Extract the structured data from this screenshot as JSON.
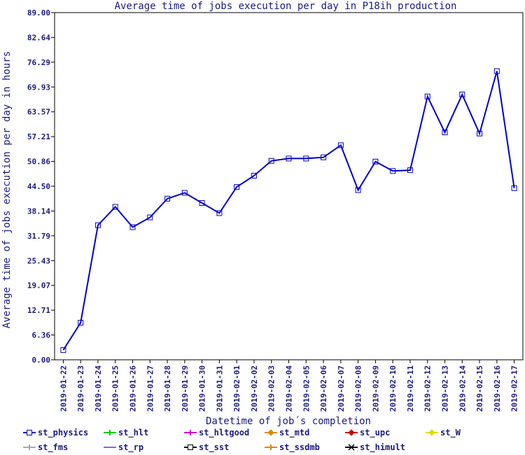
{
  "chart_data": {
    "type": "line",
    "title": "Average time of jobs execution per day in P18ih production",
    "xlabel": "Datetime of job´s completion",
    "ylabel": "Average time of jobs execution per day in hours",
    "ylim": [
      0,
      89
    ],
    "yticks": [
      "0.00",
      "6.36",
      "12.71",
      "19.07",
      "25.43",
      "31.79",
      "38.14",
      "44.50",
      "50.86",
      "57.21",
      "63.57",
      "69.93",
      "76.29",
      "82.64",
      "89.00"
    ],
    "categories": [
      "2019-01-22",
      "2019-01-23",
      "2019-01-24",
      "2019-01-25",
      "2019-01-26",
      "2019-01-27",
      "2019-01-28",
      "2019-01-29",
      "2019-01-30",
      "2019-01-31",
      "2019-02-01",
      "2019-02-02",
      "2019-02-03",
      "2019-02-04",
      "2019-02-05",
      "2019-02-06",
      "2019-02-07",
      "2019-02-08",
      "2019-02-09",
      "2019-02-10",
      "2019-02-11",
      "2019-02-12",
      "2019-02-13",
      "2019-02-14",
      "2019-02-15",
      "2019-02-16",
      "2019-02-17"
    ],
    "series": [
      {
        "name": "st_physics",
        "color": "#0000cc",
        "values": [
          2.5,
          9.5,
          34.5,
          39.2,
          34.0,
          36.5,
          41.3,
          42.8,
          40.2,
          37.6,
          44.3,
          47.2,
          51.0,
          51.6,
          51.6,
          51.9,
          55.0,
          43.5,
          50.8,
          48.4,
          48.6,
          67.5,
          58.3,
          68.0,
          58.0,
          74.0,
          44.0
        ]
      }
    ],
    "legend": {
      "placement": "bottom",
      "entries": [
        {
          "name": "st_physics",
          "color": "#0000cc",
          "marker": "square"
        },
        {
          "name": "st_hlt",
          "color": "#00cc00",
          "marker": "cross"
        },
        {
          "name": "st_hltgood",
          "color": "#cc00cc",
          "marker": "cross"
        },
        {
          "name": "st_mtd",
          "color": "#dd8800",
          "marker": "diamond"
        },
        {
          "name": "st_upc",
          "color": "#cc0000",
          "marker": "diamond"
        },
        {
          "name": "st_W",
          "color": "#dddd00",
          "marker": "diamond"
        },
        {
          "name": "st_fms",
          "color": "#aaaaaa",
          "marker": "cross"
        },
        {
          "name": "st_rp",
          "color": "#8866cc",
          "marker": "line"
        },
        {
          "name": "st_sst",
          "color": "#000000",
          "marker": "square"
        },
        {
          "name": "st_ssdmb",
          "color": "#dd8800",
          "marker": "cross"
        },
        {
          "name": "st_himult",
          "color": "#000000",
          "marker": "x"
        }
      ]
    },
    "grid": false
  }
}
